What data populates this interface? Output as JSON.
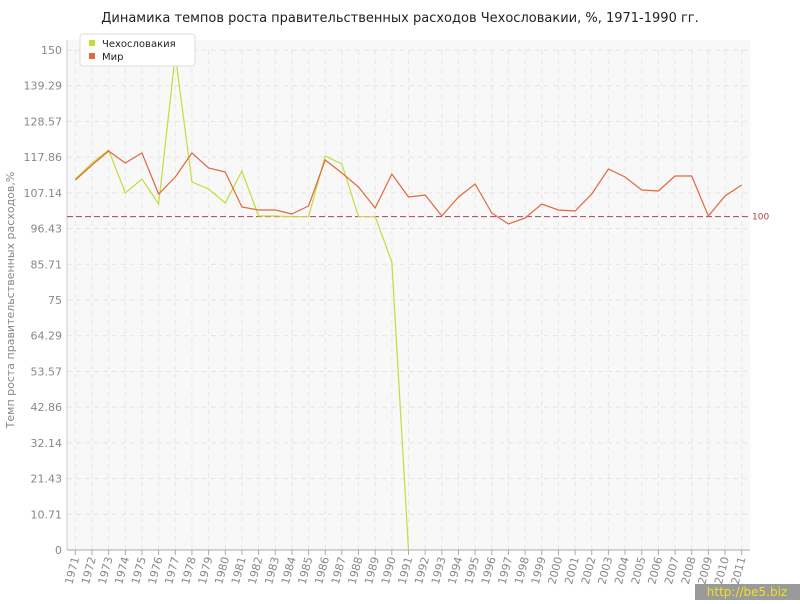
{
  "chart_data": {
    "type": "line",
    "title": "Динамика темпов роста правительственных расходов Чехословакии, %, 1971-1990 гг.",
    "y_label": "Темп роста правительственных расходов,%",
    "categories": [
      "1971",
      "1972",
      "1973",
      "1974",
      "1975",
      "1976",
      "1977",
      "1978",
      "1979",
      "1980",
      "1981",
      "1982",
      "1983",
      "1984",
      "1985",
      "1986",
      "1987",
      "1988",
      "1989",
      "1990",
      "1991",
      "1992",
      "1993",
      "1994",
      "1995",
      "1996",
      "1997",
      "1998",
      "1999",
      "2000",
      "2001",
      "2002",
      "2003",
      "2004",
      "2005",
      "2006",
      "2007",
      "2008",
      "2009",
      "2010",
      "2011"
    ],
    "series": [
      {
        "name": "Чехословакия",
        "color": "#c5dc3a",
        "values": [
          111.3,
          116.1,
          120,
          107.1,
          111.3,
          103.8,
          148.5,
          110.4,
          108.3,
          104.1,
          113.7,
          100.2,
          100.2,
          100,
          100,
          118.2,
          115.8,
          100,
          100,
          86.4,
          0,
          null,
          null,
          null,
          null,
          null,
          null,
          null,
          null,
          null,
          null,
          null,
          null,
          null,
          null,
          null,
          null,
          null,
          null,
          null,
          null
        ]
      },
      {
        "name": "Мир",
        "color": "#e0683c",
        "values": [
          111,
          115.5,
          119.7,
          116.1,
          119.1,
          106.8,
          111.9,
          119.1,
          114.6,
          113.4,
          102.9,
          102,
          102,
          100.8,
          103.2,
          117,
          113.1,
          108.9,
          102.6,
          112.8,
          105.9,
          106.5,
          100.2,
          105.9,
          109.8,
          101.1,
          97.8,
          99.6,
          103.8,
          102,
          101.7,
          106.8,
          114.3,
          111.9,
          108,
          107.7,
          112.2,
          112.2,
          100.2,
          106.2,
          109.5
        ]
      }
    ],
    "ylim": [
      0,
      150
    ],
    "yticks": [
      0,
      10.71,
      21.43,
      32.14,
      42.86,
      53.57,
      64.29,
      75,
      85.71,
      96.43,
      107.14,
      117.86,
      128.57,
      139.29,
      150
    ],
    "reference_line": 100,
    "reference_color": "#b04050",
    "grid": true,
    "legend": "top-left",
    "watermark": "http://be5.biz"
  }
}
